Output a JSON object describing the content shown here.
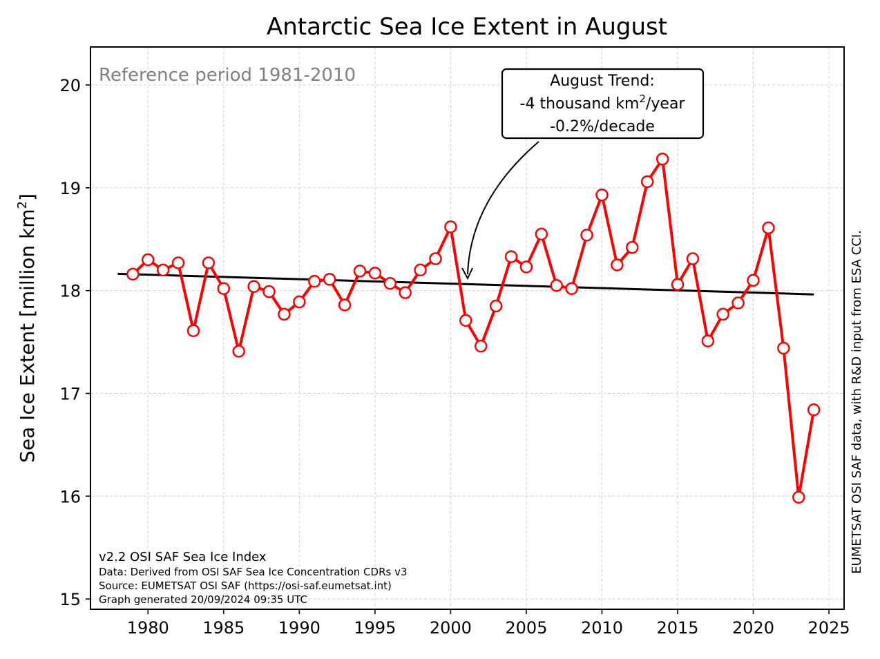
{
  "chart_data": {
    "type": "line",
    "title": "Antarctic Sea Ice Extent in August",
    "ylabel": "Sea Ice Extent [million km²]",
    "ylabel_parts": {
      "main": "Sea Ice Extent [million km",
      "sup": "2",
      "end": "]"
    },
    "xlabel": "",
    "xlim": [
      1976.2,
      2026.0
    ],
    "ylim": [
      14.9,
      20.37
    ],
    "x_ticks": [
      "1980",
      "1985",
      "1990",
      "1995",
      "2000",
      "2005",
      "2010",
      "2015",
      "2020",
      "2025"
    ],
    "y_ticks": [
      "15",
      "16",
      "17",
      "18",
      "19",
      "20"
    ],
    "grid": true,
    "series": [
      {
        "color": "#ff0000",
        "marker": "open-circle",
        "x": [
          1979,
          1980,
          1981,
          1982,
          1983,
          1984,
          1985,
          1986,
          1987,
          1988,
          1989,
          1990,
          1991,
          1992,
          1993,
          1994,
          1995,
          1996,
          1997,
          1998,
          1999,
          2000,
          2001,
          2002,
          2003,
          2004,
          2005,
          2006,
          2007,
          2008,
          2009,
          2010,
          2011,
          2012,
          2013,
          2014,
          2015,
          2016,
          2017,
          2018,
          2019,
          2020,
          2021,
          2022,
          2023,
          2024
        ],
        "y": [
          18.16,
          18.3,
          18.2,
          18.27,
          17.61,
          18.27,
          18.02,
          17.41,
          18.04,
          17.99,
          17.77,
          17.89,
          18.09,
          18.11,
          17.86,
          18.19,
          18.17,
          18.07,
          17.98,
          18.2,
          18.31,
          18.62,
          17.71,
          17.46,
          17.85,
          18.33,
          18.23,
          18.55,
          18.05,
          18.02,
          18.54,
          18.93,
          18.25,
          18.42,
          19.06,
          19.28,
          18.06,
          18.31,
          17.51,
          17.77,
          17.88,
          18.1,
          18.61,
          17.44,
          15.99,
          16.84
        ]
      }
    ],
    "trend_line": {
      "color": "#000000",
      "x": [
        1978,
        2024
      ],
      "y": [
        18.163,
        17.963
      ]
    },
    "annotations": {
      "reference": "Reference period 1981-2010",
      "trend_box": {
        "line1": "August Trend:",
        "line2_pre": "-4 thousand km",
        "line2_sup": "2",
        "line2_post": "/year",
        "line3": "-0.2%/decade",
        "arrow_target": {
          "x": 2001,
          "y": 18.1
        }
      },
      "source_lines": [
        "v2.2 OSI SAF Sea Ice Index",
        "Data: Derived from OSI SAF Sea Ice Concentration CDRs v3",
        "Source: EUMETSAT OSI SAF (https://osi-saf.eumetsat.int)",
        "Graph generated 20/09/2024 09:35 UTC"
      ],
      "side_credit": "EUMETSAT OSI SAF data, with R&D input from ESA CCI."
    }
  }
}
